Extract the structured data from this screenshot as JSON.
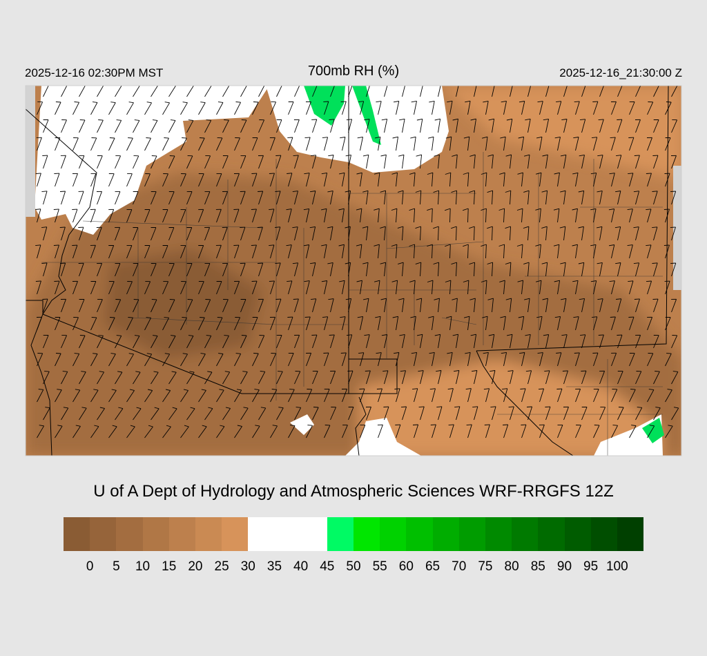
{
  "header": {
    "local_time": "2025-12-16 02:30PM MST",
    "title": "700mb RH (%)",
    "valid_time": "2025-12-16_21:30:00 Z"
  },
  "credit": "U of A Dept of Hydrology and Atmospheric Sciences WRF-RRGFS 12Z",
  "colorbar": {
    "colors": [
      "#8a5c34",
      "#96643a",
      "#a36d40",
      "#b07746",
      "#bd804d",
      "#ca8a53",
      "#d7935a",
      "#ffffff",
      "#ffffff",
      "#ffffff",
      "#00fa64",
      "#00e600",
      "#00d200",
      "#00bf00",
      "#00ad00",
      "#009c00",
      "#008a00",
      "#007a00",
      "#006b00",
      "#005c00",
      "#004e00",
      "#004000"
    ],
    "labels": [
      "0",
      "5",
      "10",
      "15",
      "20",
      "25",
      "30",
      "35",
      "40",
      "45",
      "50",
      "55",
      "60",
      "65",
      "70",
      "75",
      "80",
      "85",
      "90",
      "95",
      "100"
    ]
  },
  "map_colors": {
    "very_dry": "#8a5c34",
    "dry": "#a36d40",
    "moderate": "#bd804d",
    "light": "#d7935a",
    "moist": "#ffffff",
    "humid": "#00e05a",
    "outside": "#d3d3d3"
  },
  "map_legend_meaning": "shading = 700mb relative humidity, barbs = wind"
}
